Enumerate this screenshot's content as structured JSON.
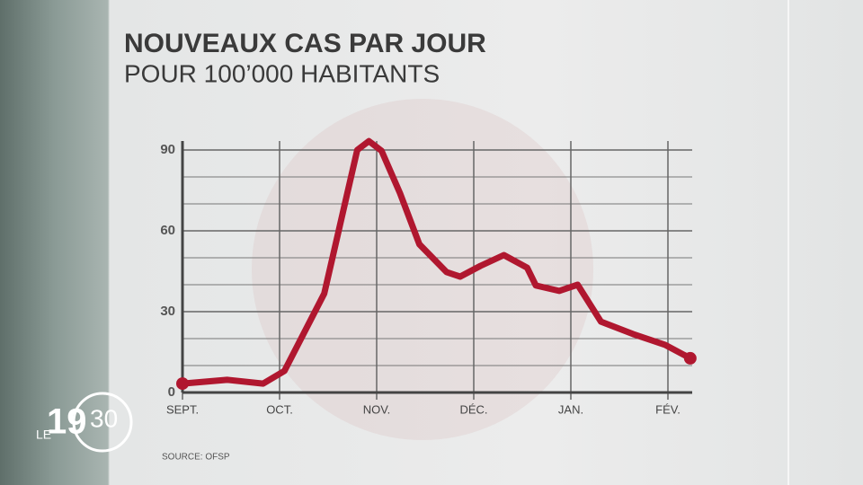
{
  "chart_data": {
    "type": "line",
    "title": "NOUVEAUX CAS PAR JOUR",
    "subtitle": "POUR 100’000 HABITANTS",
    "source": "SOURCE: OFSP",
    "x": [
      0,
      0.46,
      0.83,
      1.05,
      1.46,
      1.8,
      1.92,
      2.05,
      2.24,
      2.44,
      2.72,
      2.86,
      3.07,
      3.31,
      3.55,
      3.64,
      3.88,
      4.07,
      4.31,
      4.64,
      4.97,
      5.23
    ],
    "series": [
      {
        "color": "#b0172f",
        "values": [
          3.3,
          4.7,
          3.3,
          8,
          36.7,
          90,
          93.3,
          89.7,
          74,
          55,
          44.7,
          43,
          47,
          51,
          46.3,
          39.7,
          37.7,
          40,
          26.3,
          21.7,
          17.7,
          12.7
        ]
      }
    ],
    "xlim": [
      0,
      5.25
    ],
    "xticks": [
      {
        "value": 0,
        "label": "SEPT."
      },
      {
        "value": 1,
        "label": "OCT."
      },
      {
        "value": 2,
        "label": "NOV."
      },
      {
        "value": 3,
        "label": "DÉC."
      },
      {
        "value": 4,
        "label": "JAN."
      },
      {
        "value": 5,
        "label": "FÉV."
      }
    ],
    "ylim": [
      0,
      90
    ],
    "yticks": [
      0,
      30,
      60,
      90
    ],
    "minor_yticks": [
      10,
      20,
      40,
      50,
      70,
      80
    ],
    "grid": true,
    "end_markers": true
  },
  "logo": {
    "prefix": "LE",
    "hour": "19",
    "minute": "30"
  }
}
